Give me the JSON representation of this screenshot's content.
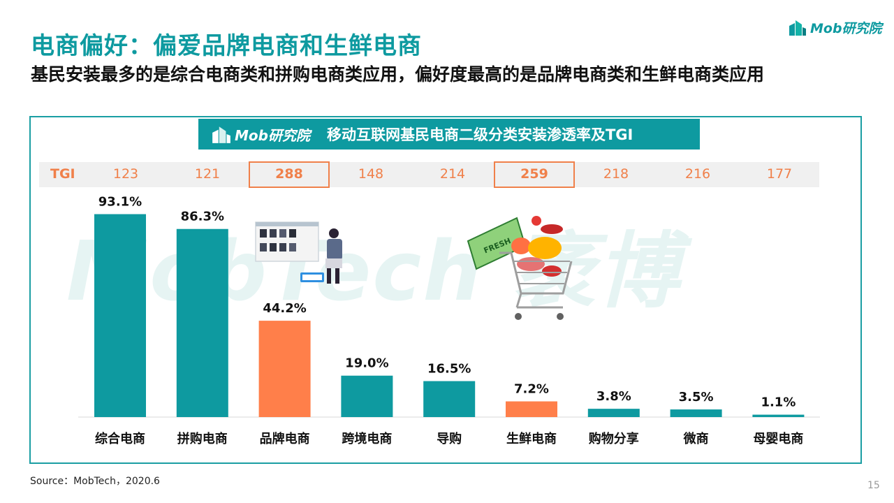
{
  "header": {
    "title": "电商偏好：偏爱品牌电商和生鲜电商",
    "subtitle": "基民安装最多的是综合电商类和拼购电商类应用，偏好度最高的是品牌电商类和生鲜电商类应用",
    "logo_text": "Mob研究院"
  },
  "banner": {
    "logo_text": "Mob研究院",
    "title": "移动互联网基民电商二级分类安装渗透率及TGI"
  },
  "watermark": "MobTech 袤博",
  "tgi": {
    "label": "TGI",
    "values": [
      "123",
      "121",
      "288",
      "148",
      "214",
      "259",
      "218",
      "216",
      "177"
    ]
  },
  "colors": {
    "teal": "#0e9aa0",
    "orange": "#ff7f4a",
    "tgi": "#f0804a"
  },
  "chart_data": {
    "type": "bar",
    "categories": [
      "综合电商",
      "拼购电商",
      "品牌电商",
      "跨境电商",
      "导购",
      "生鲜电商",
      "购物分享",
      "微商",
      "母婴电商"
    ],
    "values": [
      93.1,
      86.3,
      44.2,
      19.0,
      16.5,
      7.2,
      3.8,
      3.5,
      1.1
    ],
    "labels": [
      "93.1%",
      "86.3%",
      "44.2%",
      "19.0%",
      "16.5%",
      "7.2%",
      "3.8%",
      "3.5%",
      "1.1%"
    ],
    "highlight": [
      false,
      false,
      true,
      false,
      false,
      true,
      false,
      false,
      false
    ],
    "ylim": [
      0,
      100
    ],
    "grid": false,
    "title": "移动互联网基民电商二级分类安装渗透率及TGI"
  },
  "footer": {
    "source": "Source：MobTech，2020.6",
    "page": "15"
  }
}
